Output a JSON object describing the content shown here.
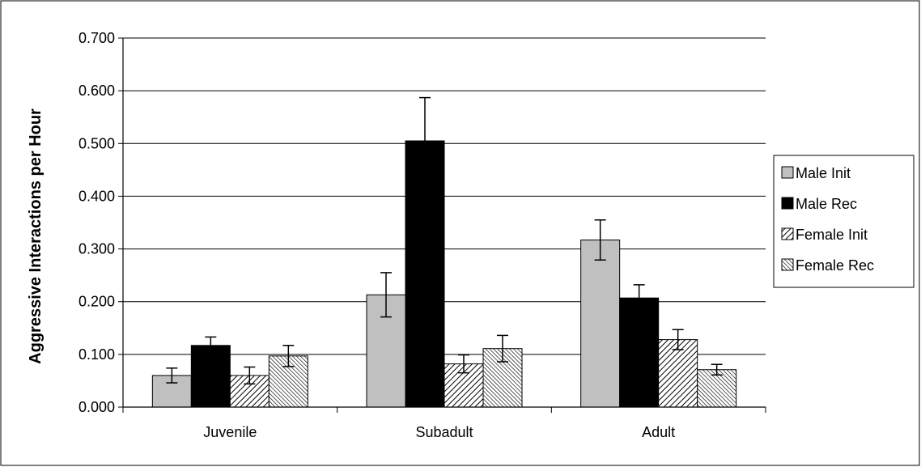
{
  "chart_data": {
    "type": "bar",
    "title": "",
    "xlabel": "",
    "ylabel": "Aggressive Interactions per Hour",
    "categories": [
      "Juvenile",
      "Subadult",
      "Adult"
    ],
    "ylim": [
      0,
      0.7
    ],
    "yticks": [
      "0.000",
      "0.100",
      "0.200",
      "0.300",
      "0.400",
      "0.500",
      "0.600",
      "0.700"
    ],
    "grid": true,
    "legend_position": "right",
    "series": [
      {
        "name": "Male Init",
        "values": [
          0.06,
          0.213,
          0.317
        ],
        "errors": [
          0.014,
          0.042,
          0.038
        ],
        "color": "#c0c0c0",
        "pattern": "solid"
      },
      {
        "name": "Male Rec",
        "values": [
          0.117,
          0.505,
          0.207
        ],
        "errors": [
          0.016,
          0.082,
          0.025
        ],
        "color": "#000000",
        "pattern": "solid"
      },
      {
        "name": "Female Init",
        "values": [
          0.06,
          0.082,
          0.128
        ],
        "errors": [
          0.016,
          0.017,
          0.019
        ],
        "color": "#ffffff",
        "pattern": "wide-diagonal"
      },
      {
        "name": "Female Rec",
        "values": [
          0.097,
          0.111,
          0.071
        ],
        "errors": [
          0.02,
          0.025,
          0.01
        ],
        "color": "#ffffff",
        "pattern": "dense-diagonal"
      }
    ]
  }
}
